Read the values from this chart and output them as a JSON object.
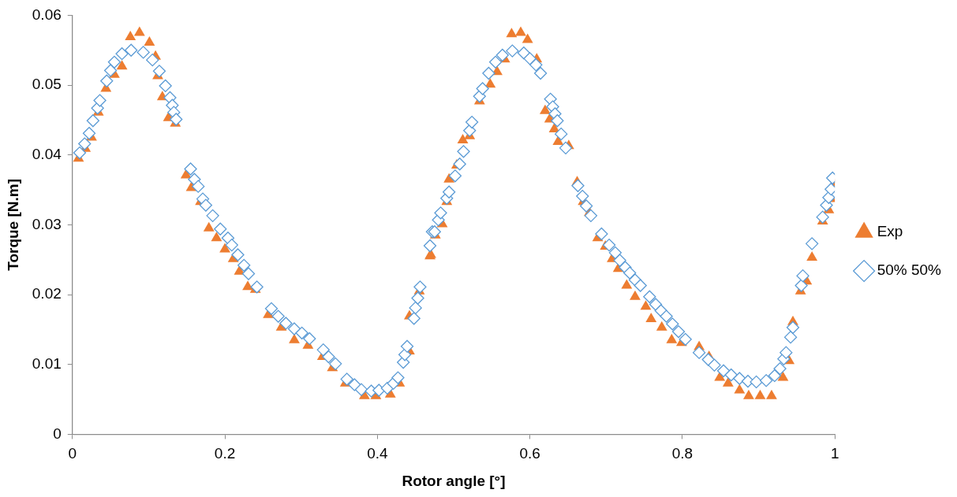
{
  "chart_data": {
    "type": "scatter",
    "xlabel": "Rotor angle [°]",
    "ylabel": "Torque [N.m]",
    "xlim": [
      0,
      1
    ],
    "xticks": [
      0,
      0.2,
      0.4,
      0.6,
      0.8,
      1
    ],
    "ylim": [
      0,
      0.06
    ],
    "yticks": [
      0,
      0.01,
      0.02,
      0.03,
      0.04,
      0.05,
      0.06
    ],
    "grid": false,
    "legend": "right",
    "series": [
      {
        "name": "Exp",
        "color": "#ed7d31",
        "marker": "triangle",
        "x": [
          0.008,
          0.017,
          0.025,
          0.034,
          0.044,
          0.055,
          0.065,
          0.076,
          0.088,
          0.101,
          0.109,
          0.112,
          0.118,
          0.126,
          0.135,
          0.149,
          0.156,
          0.168,
          0.179,
          0.189,
          0.2,
          0.211,
          0.219,
          0.23,
          0.24,
          0.257,
          0.274,
          0.291,
          0.309,
          0.328,
          0.341,
          0.358,
          0.372,
          0.383,
          0.398,
          0.417,
          0.429,
          0.434,
          0.442,
          0.442,
          0.455,
          0.469,
          0.47,
          0.476,
          0.485,
          0.491,
          0.494,
          0.504,
          0.512,
          0.521,
          0.534,
          0.548,
          0.557,
          0.567,
          0.576,
          0.588,
          0.597,
          0.609,
          0.614,
          0.62,
          0.626,
          0.632,
          0.637,
          0.651,
          0.662,
          0.67,
          0.678,
          0.689,
          0.699,
          0.708,
          0.716,
          0.727,
          0.738,
          0.752,
          0.759,
          0.773,
          0.786,
          0.799,
          0.822,
          0.835,
          0.849,
          0.86,
          0.875,
          0.887,
          0.902,
          0.917,
          0.932,
          0.94,
          0.942,
          0.945,
          0.955,
          0.963,
          0.97,
          0.984,
          0.992,
          0.995,
          0.999
        ],
        "values": [
          0.0395,
          0.0409,
          0.0425,
          0.0461,
          0.0495,
          0.0515,
          0.0527,
          0.0569,
          0.0575,
          0.0561,
          0.0541,
          0.0513,
          0.0483,
          0.0453,
          0.0445,
          0.0371,
          0.0353,
          0.0333,
          0.0295,
          0.0281,
          0.0265,
          0.0251,
          0.0233,
          0.0211,
          0.0207,
          0.0171,
          0.0153,
          0.0135,
          0.0127,
          0.0111,
          0.0095,
          0.0073,
          null,
          0.0055,
          0.0055,
          0.0057,
          0.0073,
          null,
          0.0119,
          0.0169,
          0.0205,
          0.0255,
          0.0257,
          0.0285,
          0.0301,
          0.0333,
          0.0365,
          0.0385,
          0.0421,
          0.0427,
          0.0477,
          0.0501,
          0.0519,
          0.0537,
          0.0573,
          0.0575,
          0.0565,
          0.0537,
          null,
          0.0463,
          0.0451,
          0.0437,
          0.0419,
          0.0413,
          0.0361,
          0.0333,
          0.0317,
          0.0281,
          0.0269,
          0.0251,
          0.0237,
          0.0213,
          0.0197,
          0.0183,
          0.0165,
          0.0153,
          0.0135,
          0.0131,
          0.0125,
          0.0111,
          0.0081,
          0.0073,
          0.0063,
          0.0055,
          0.0055,
          0.0055,
          0.0081,
          0.0105,
          null,
          0.0161,
          0.0205,
          0.0219,
          0.0253,
          0.0305,
          0.0321,
          0.0337,
          0.0359
        ]
      },
      {
        "name": "50% 50%",
        "color": "#5b9bd5",
        "marker": "diamond",
        "x": [
          0.0095,
          0.016,
          0.022,
          0.027,
          0.033,
          0.036,
          0.045,
          0.05,
          0.055,
          0.065,
          0.077,
          0.093,
          0.105,
          0.114,
          0.122,
          0.128,
          0.131,
          0.133,
          0.136,
          0.155,
          0.16,
          0.165,
          0.171,
          0.175,
          0.184,
          0.194,
          0.204,
          0.209,
          0.217,
          0.225,
          0.231,
          0.242,
          0.261,
          0.27,
          0.28,
          0.291,
          0.301,
          0.311,
          0.329,
          0.336,
          0.345,
          0.36,
          0.37,
          0.379,
          0.392,
          0.402,
          0.413,
          0.421,
          0.427,
          0.434,
          0.436,
          0.439,
          0.448,
          0.45,
          0.453,
          0.456,
          0.469,
          0.472,
          0.475,
          0.48,
          0.483,
          0.491,
          0.494,
          0.502,
          0.508,
          0.513,
          0.521,
          0.524,
          0.534,
          0.538,
          0.546,
          0.555,
          0.564,
          0.577,
          0.592,
          0.6,
          0.608,
          0.614,
          0.627,
          0.63,
          0.633,
          0.636,
          0.641,
          0.647,
          0.663,
          0.669,
          0.674,
          0.68,
          0.694,
          0.704,
          0.712,
          0.718,
          0.725,
          0.731,
          0.738,
          0.745,
          0.757,
          0.765,
          0.772,
          0.779,
          0.787,
          0.795,
          0.804,
          0.822,
          0.834,
          0.842,
          0.854,
          0.864,
          0.875,
          0.886,
          0.897,
          0.91,
          0.921,
          0.928,
          0.933,
          0.936,
          0.942,
          0.945,
          0.956,
          0.958,
          0.97,
          0.984,
          0.989,
          0.992,
          0.995,
          0.997
        ],
        "values": [
          0.0403,
          0.0416,
          0.0431,
          0.0449,
          0.0467,
          0.0478,
          0.0506,
          0.0521,
          0.0533,
          0.0545,
          0.055,
          0.0547,
          0.0536,
          0.052,
          0.0499,
          0.0482,
          0.0471,
          0.0461,
          0.0451,
          0.038,
          0.0365,
          0.0355,
          0.0337,
          0.0328,
          0.0313,
          0.0294,
          0.0281,
          0.0271,
          0.0257,
          0.0242,
          0.023,
          0.0211,
          0.018,
          0.0169,
          0.0159,
          0.0151,
          0.0145,
          0.0137,
          0.0121,
          0.0111,
          0.0101,
          0.0079,
          0.0071,
          0.0064,
          0.0062,
          0.0063,
          0.0066,
          0.0073,
          0.0081,
          0.0103,
          0.0114,
          0.0126,
          0.0166,
          0.0181,
          0.0195,
          0.0211,
          0.027,
          0.029,
          0.029,
          0.0307,
          0.0317,
          0.0338,
          0.0347,
          0.037,
          0.0387,
          0.0405,
          0.0435,
          0.0447,
          0.0484,
          0.0495,
          0.0517,
          0.0533,
          0.0543,
          0.0549,
          0.0546,
          0.0538,
          0.0529,
          0.0517,
          0.048,
          0.0469,
          0.0459,
          0.0449,
          0.043,
          0.041,
          0.0356,
          0.0341,
          0.0327,
          0.0313,
          0.0287,
          0.0271,
          0.026,
          0.0249,
          0.0239,
          0.0231,
          0.0221,
          0.0213,
          0.0197,
          0.0186,
          0.0177,
          0.0169,
          0.0158,
          0.0147,
          0.0136,
          0.0117,
          0.0107,
          0.0099,
          0.0091,
          0.0085,
          0.008,
          0.0076,
          0.0075,
          0.0077,
          0.0084,
          0.0094,
          0.0108,
          0.0117,
          0.0139,
          0.0153,
          0.0213,
          0.0227,
          0.0273,
          0.0311,
          0.0328,
          0.0339,
          0.0351,
          0.0367
        ]
      }
    ]
  }
}
